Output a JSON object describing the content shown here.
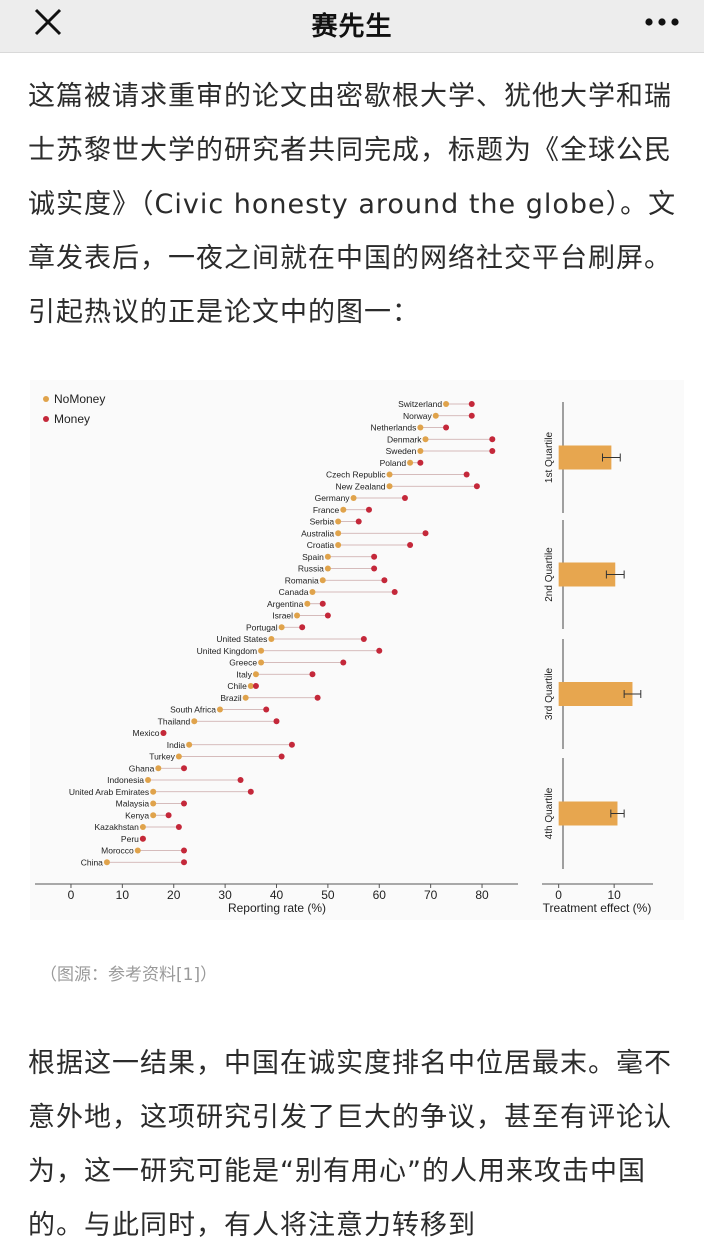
{
  "header": {
    "title": "赛先生",
    "close_icon": "close-icon",
    "more_icon": "more-dots-icon"
  },
  "article": {
    "paragraph1": "这篇被请求重审的论文由密歇根大学、犹他大学和瑞士苏黎世大学的研究者共同完成，标题为《全球公民诚实度》（Civic honesty around the globe）。文章发表后，一夜之间就在中国的网络社交平台刷屏。引起热议的正是论文中的图一：",
    "caption": "（图源：参考资料[1]）",
    "paragraph2": "根据这一结果，中国在诚实度排名中位居最末。毫不意外地，这项研究引发了巨大的争议，甚至有评论认为，这一研究可能是“别有用心”的人用来攻击中国的。与此同时，有人将注意力转移到"
  },
  "chart_data": [
    {
      "type": "scatter",
      "title": "",
      "xlabel": "Reporting rate (%)",
      "ylabel": "",
      "xlim": [
        -7,
        87
      ],
      "xticks": [
        0,
        10,
        20,
        30,
        40,
        50,
        60,
        70,
        80
      ],
      "legend": {
        "position": "top-left",
        "entries": [
          "NoMoney",
          "Money"
        ]
      },
      "colors": {
        "NoMoney": "#e0a34b",
        "Money": "#c4283a",
        "connector": "#c9a6a6"
      },
      "categories": [
        "Switzerland",
        "Norway",
        "Netherlands",
        "Denmark",
        "Sweden",
        "Poland",
        "Czech Republic",
        "New Zealand",
        "Germany",
        "France",
        "Serbia",
        "Australia",
        "Croatia",
        "Spain",
        "Russia",
        "Romania",
        "Canada",
        "Argentina",
        "Israel",
        "Portugal",
        "United States",
        "United Kingdom",
        "Greece",
        "Italy",
        "Chile",
        "Brazil",
        "South Africa",
        "Thailand",
        "Mexico",
        "India",
        "Turkey",
        "Ghana",
        "Indonesia",
        "United Arab Emirates",
        "Malaysia",
        "Kenya",
        "Kazakhstan",
        "Peru",
        "Morocco",
        "China"
      ],
      "series": [
        {
          "name": "NoMoney",
          "values": [
            73,
            71,
            68,
            69,
            68,
            66,
            62,
            62,
            55,
            53,
            52,
            52,
            52,
            50,
            50,
            49,
            47,
            46,
            44,
            41,
            39,
            37,
            37,
            36,
            35,
            34,
            29,
            24,
            18,
            23,
            21,
            17,
            15,
            16,
            16,
            16,
            14,
            14,
            13,
            7
          ]
        },
        {
          "name": "Money",
          "values": [
            78,
            78,
            73,
            82,
            82,
            68,
            77,
            79,
            65,
            58,
            56,
            69,
            66,
            59,
            59,
            61,
            63,
            49,
            50,
            45,
            57,
            60,
            53,
            47,
            36,
            48,
            38,
            40,
            18,
            43,
            41,
            22,
            33,
            35,
            22,
            19,
            21,
            14,
            22,
            22
          ]
        }
      ]
    },
    {
      "type": "bar",
      "title": "",
      "xlabel": "Treatment effect (%)",
      "ylabel": "",
      "xlim": [
        -3,
        17
      ],
      "xticks": [
        0,
        10
      ],
      "categories": [
        "1st Quartile",
        "2nd Quartile",
        "3rd Quartile",
        "4th Quartile"
      ],
      "values": [
        9.5,
        10.2,
        13.3,
        10.6
      ],
      "errors": [
        1.6,
        1.6,
        1.5,
        1.2
      ],
      "colors": {
        "bar": "#e7a64f"
      }
    }
  ]
}
